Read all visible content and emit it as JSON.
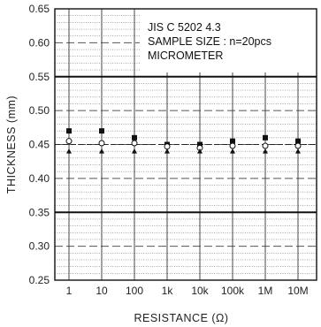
{
  "chart_data": {
    "type": "scatter",
    "categories": [
      "1",
      "10",
      "100",
      "1k",
      "10k",
      "100k",
      "1M",
      "10M"
    ],
    "ylabel": "THICKNESS (mm)",
    "xlabel": "RESISTANCE (Ω)",
    "ylim": [
      0.25,
      0.65
    ],
    "yticks": [
      "0.25",
      "0.30",
      "0.35",
      "0.40",
      "0.45",
      "0.50",
      "0.55",
      "0.60",
      "0.65"
    ],
    "annotation": [
      "JIS C 5202 4.3",
      "SAMPLE SIZE : n=20pcs",
      "MICROMETER"
    ],
    "limits": {
      "upper": 0.55,
      "lower": 0.35,
      "nominal": 0.45
    },
    "series": [
      {
        "marker": "square",
        "values": [
          0.47,
          0.47,
          0.46,
          0.45,
          0.45,
          0.455,
          0.46,
          0.455
        ]
      },
      {
        "marker": "circle",
        "values": [
          0.455,
          0.452,
          0.452,
          0.447,
          0.445,
          0.448,
          0.448,
          0.448
        ]
      },
      {
        "marker": "triangle",
        "values": [
          0.44,
          0.44,
          0.44,
          0.44,
          0.44,
          0.44,
          0.44,
          0.44
        ]
      }
    ],
    "grid": true,
    "marker_color": "#111111"
  }
}
